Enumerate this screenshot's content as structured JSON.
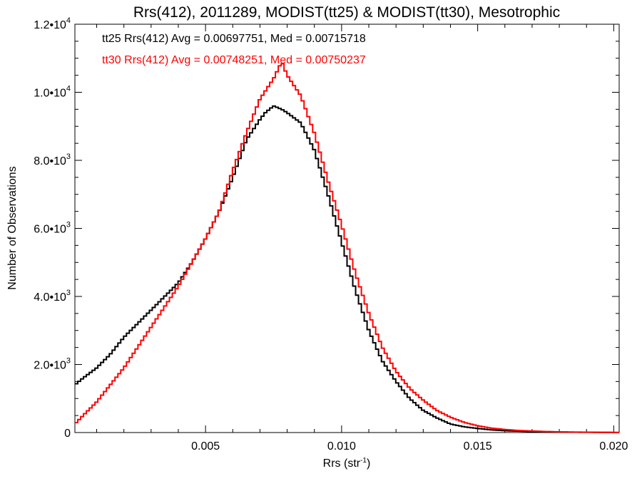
{
  "chart_data": {
    "type": "line",
    "title": "Rrs(412), 2011289, MODIST(tt25) & MODIST(tt30), Mesotrophic",
    "xlabel_base": "Rrs (str",
    "xlabel_sup": "-1",
    "xlabel_close": ")",
    "ylabel": "Number of Observations",
    "xlim": [
      0.0002,
      0.0202
    ],
    "ylim": [
      0,
      12000
    ],
    "x_ticks": [
      0.005,
      0.01,
      0.015,
      0.02
    ],
    "x_tick_labels": [
      "0.005",
      "0.010",
      "0.015",
      "0.020"
    ],
    "y_ticks": [
      0,
      2000,
      4000,
      6000,
      8000,
      10000,
      12000
    ],
    "y_tick_labels": [
      {
        "mant": "0",
        "exp": ""
      },
      {
        "mant": "2.0•10",
        "exp": "3"
      },
      {
        "mant": "4.0•10",
        "exp": "3"
      },
      {
        "mant": "6.0•10",
        "exp": "3"
      },
      {
        "mant": "8.0•10",
        "exp": "3"
      },
      {
        "mant": "1.0•10",
        "exp": "4"
      },
      {
        "mant": "1.2•10",
        "exp": "4"
      }
    ],
    "grid": false,
    "legend_position": "top-left",
    "series": [
      {
        "name": "tt25",
        "label": "tt25 Rrs(412) Avg = 0.00697751, Med = 0.00715718",
        "color": "#000000",
        "x": [
          0.0002,
          0.0005,
          0.001,
          0.0015,
          0.002,
          0.0025,
          0.003,
          0.0035,
          0.004,
          0.0045,
          0.005,
          0.0055,
          0.006,
          0.0065,
          0.007,
          0.0072,
          0.0075,
          0.0078,
          0.008,
          0.0085,
          0.009,
          0.0095,
          0.01,
          0.0105,
          0.011,
          0.0115,
          0.012,
          0.0125,
          0.013,
          0.0135,
          0.014,
          0.0145,
          0.015,
          0.0155,
          0.016,
          0.0165,
          0.017,
          0.0175,
          0.018,
          0.0185,
          0.019,
          0.0195,
          0.0202
        ],
        "y": [
          1400,
          1600,
          1900,
          2300,
          2800,
          3200,
          3600,
          4000,
          4400,
          5000,
          5700,
          6500,
          7500,
          8600,
          9200,
          9400,
          9600,
          9500,
          9400,
          9100,
          8300,
          7000,
          5600,
          4200,
          3000,
          2100,
          1500,
          1000,
          650,
          430,
          250,
          170,
          120,
          80,
          55,
          40,
          30,
          20,
          15,
          10,
          8,
          5,
          3
        ]
      },
      {
        "name": "tt30",
        "label": "tt30 Rrs(412) Avg = 0.00748251, Med = 0.00750237",
        "color": "#ff0000",
        "x": [
          0.0002,
          0.0005,
          0.001,
          0.0015,
          0.002,
          0.0025,
          0.003,
          0.0035,
          0.004,
          0.0045,
          0.005,
          0.0055,
          0.006,
          0.0065,
          0.007,
          0.0075,
          0.0078,
          0.008,
          0.0085,
          0.009,
          0.0095,
          0.01,
          0.0105,
          0.011,
          0.0115,
          0.012,
          0.0125,
          0.013,
          0.0135,
          0.014,
          0.0145,
          0.015,
          0.0155,
          0.016,
          0.0165,
          0.017,
          0.0175,
          0.018,
          0.0185,
          0.019,
          0.0195,
          0.0202
        ],
        "y": [
          250,
          500,
          900,
          1400,
          1900,
          2500,
          3100,
          3700,
          4300,
          5000,
          5700,
          6500,
          7700,
          8800,
          9800,
          10400,
          10900,
          10500,
          9900,
          8800,
          7400,
          6100,
          4700,
          3500,
          2500,
          1800,
          1300,
          950,
          650,
          450,
          300,
          200,
          130,
          90,
          60,
          45,
          30,
          20,
          15,
          10,
          6,
          3
        ]
      }
    ]
  }
}
